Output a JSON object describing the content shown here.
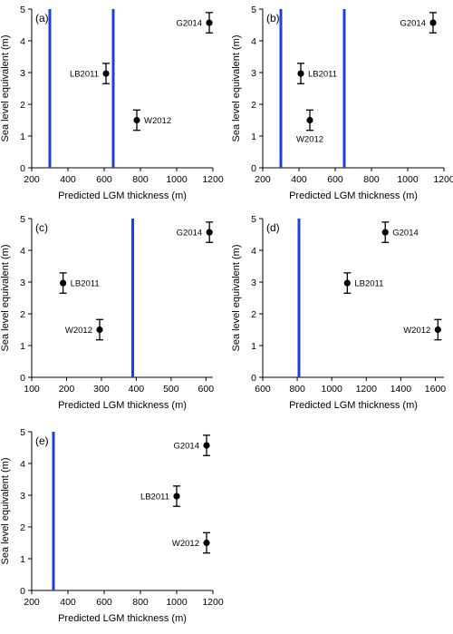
{
  "chart_data": [
    {
      "type": "scatter",
      "panel_label": "(a)",
      "xlabel": "Predicted LGM thickness (m)",
      "ylabel": "Sea level equivalent (m)",
      "xlim": [
        200,
        1200
      ],
      "ylim": [
        0,
        5
      ],
      "xticks": [
        200,
        400,
        600,
        800,
        1000,
        1200
      ],
      "yticks": [
        0,
        1,
        2,
        3,
        4,
        5
      ],
      "vertical_lines": [
        300,
        650
      ],
      "vertical_line_color": "#1f3fd6",
      "points": [
        {
          "label": "LB2011",
          "x": 610,
          "y": 2.97,
          "err": 0.32,
          "label_side": "left"
        },
        {
          "label": "W2012",
          "x": 780,
          "y": 1.5,
          "err": 0.32,
          "label_side": "right"
        },
        {
          "label": "G2014",
          "x": 1180,
          "y": 4.57,
          "err": 0.32,
          "label_side": "left"
        }
      ]
    },
    {
      "type": "scatter",
      "panel_label": "(b)",
      "xlabel": "Predicted LGM thickness (m)",
      "ylabel": "Sea level equivalent (m)",
      "xlim": [
        200,
        1200
      ],
      "ylim": [
        0,
        5
      ],
      "xticks": [
        200,
        400,
        600,
        800,
        1000,
        1200
      ],
      "yticks": [
        0,
        1,
        2,
        3,
        4,
        5
      ],
      "vertical_lines": [
        300,
        650
      ],
      "vertical_line_color": "#1f3fd6",
      "points": [
        {
          "label": "LB2011",
          "x": 410,
          "y": 2.97,
          "err": 0.32,
          "label_side": "right"
        },
        {
          "label": "W2012",
          "x": 460,
          "y": 1.5,
          "err": 0.32,
          "label_side": "below"
        },
        {
          "label": "G2014",
          "x": 1140,
          "y": 4.57,
          "err": 0.32,
          "label_side": "left"
        }
      ]
    },
    {
      "type": "scatter",
      "panel_label": "(c)",
      "xlabel": "Predicted LGM thickness (m)",
      "ylabel": "Sea level equivalent (m)",
      "xlim": [
        100,
        620
      ],
      "ylim": [
        0,
        5
      ],
      "xticks": [
        100,
        200,
        300,
        400,
        500,
        600
      ],
      "yticks": [
        0,
        1,
        2,
        3,
        4,
        5
      ],
      "vertical_lines": [
        390
      ],
      "vertical_line_color": "#1f3fd6",
      "points": [
        {
          "label": "LB2011",
          "x": 190,
          "y": 2.97,
          "err": 0.32,
          "label_side": "right"
        },
        {
          "label": "W2012",
          "x": 295,
          "y": 1.5,
          "err": 0.32,
          "label_side": "left"
        },
        {
          "label": "G2014",
          "x": 610,
          "y": 4.57,
          "err": 0.32,
          "label_side": "left"
        }
      ]
    },
    {
      "type": "scatter",
      "panel_label": "(d)",
      "xlabel": "Predicted LGM thickness (m)",
      "ylabel": "Sea level equivalent (m)",
      "xlim": [
        600,
        1650
      ],
      "ylim": [
        0,
        5
      ],
      "xticks": [
        600,
        800,
        1000,
        1200,
        1400,
        1600
      ],
      "yticks": [
        0,
        1,
        2,
        3,
        4,
        5
      ],
      "vertical_lines": [
        810
      ],
      "vertical_line_color": "#1f3fd6",
      "points": [
        {
          "label": "LB2011",
          "x": 1090,
          "y": 2.97,
          "err": 0.32,
          "label_side": "right"
        },
        {
          "label": "W2012",
          "x": 1615,
          "y": 1.5,
          "err": 0.32,
          "label_side": "left"
        },
        {
          "label": "G2014",
          "x": 1310,
          "y": 4.57,
          "err": 0.32,
          "label_side": "right"
        }
      ]
    },
    {
      "type": "scatter",
      "panel_label": "(e)",
      "xlabel": "Predicted LGM thickness (m)",
      "ylabel": "Sea level equivalent (m)",
      "xlim": [
        200,
        1200
      ],
      "ylim": [
        0,
        5
      ],
      "xticks": [
        200,
        400,
        600,
        800,
        1000,
        1200
      ],
      "yticks": [
        0,
        1,
        2,
        3,
        4,
        5
      ],
      "vertical_lines": [
        320
      ],
      "vertical_line_color": "#1f3fd6",
      "points": [
        {
          "label": "LB2011",
          "x": 1000,
          "y": 2.97,
          "err": 0.32,
          "label_side": "left"
        },
        {
          "label": "W2012",
          "x": 1165,
          "y": 1.5,
          "err": 0.32,
          "label_side": "left"
        },
        {
          "label": "G2014",
          "x": 1165,
          "y": 4.57,
          "err": 0.32,
          "label_side": "left"
        }
      ]
    }
  ]
}
